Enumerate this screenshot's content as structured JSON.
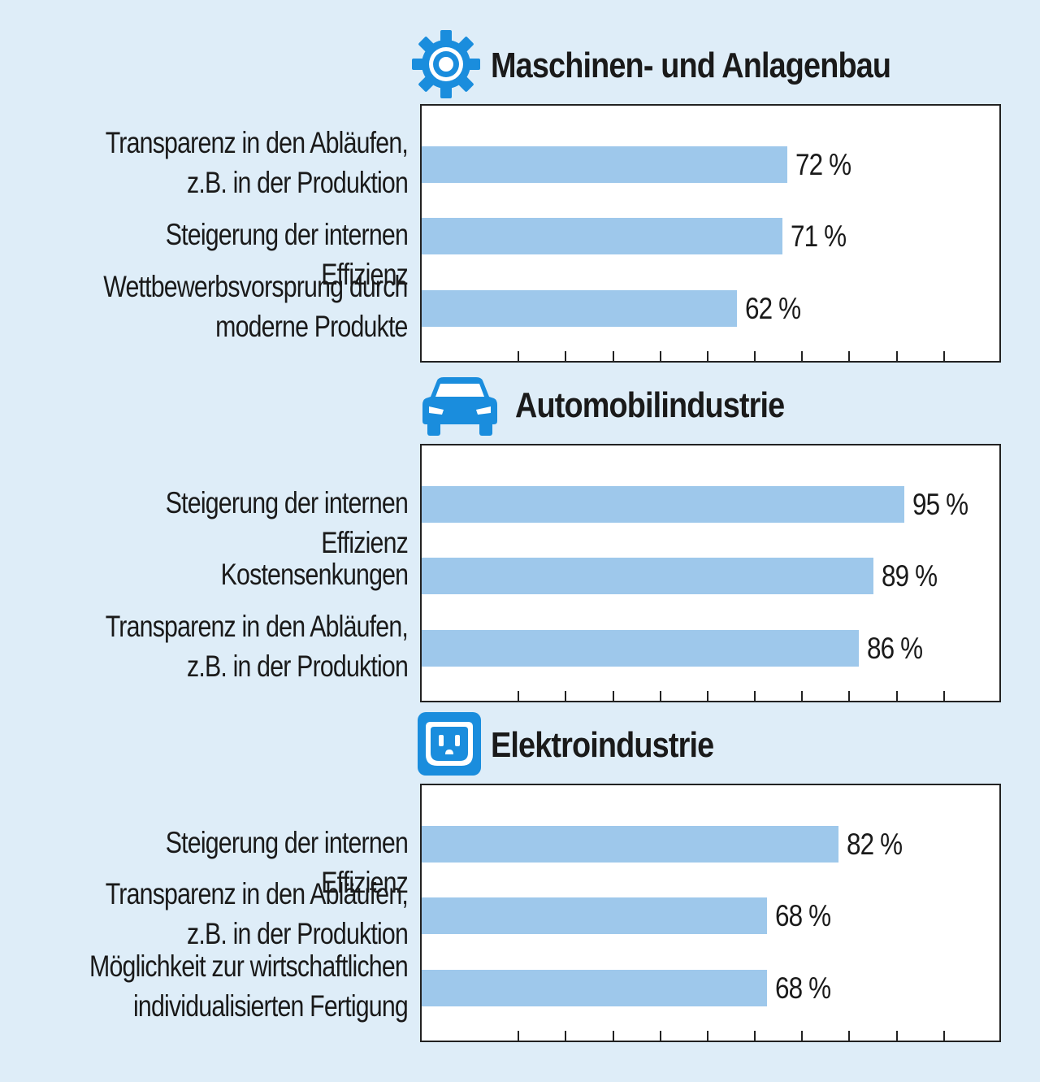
{
  "colors": {
    "background": "#deedf8",
    "bar": "#9ec8eb",
    "icon": "#1a8ddd",
    "text": "#1a1a1a"
  },
  "chart_data": [
    {
      "type": "bar",
      "orientation": "horizontal",
      "title": "Maschinen- und Anlagenbau",
      "icon": "gear-icon",
      "categories": [
        "Transparenz in den Abläufen,\nz.B. in der Produktion",
        "Steigerung der internen Effizienz",
        "Wettbewerbsvorsprung durch\nmoderne Produkte"
      ],
      "values": [
        72,
        71,
        62
      ],
      "value_labels": [
        "72 %",
        "71 %",
        "62 %"
      ],
      "xlim": [
        0,
        110
      ],
      "tick_step": 10,
      "grid": false
    },
    {
      "type": "bar",
      "orientation": "horizontal",
      "title": "Automobilindustrie",
      "icon": "car-icon",
      "categories": [
        "Steigerung der internen Effizienz",
        "Kostensenkungen",
        "Transparenz in den Abläufen,\nz.B. in der Produktion"
      ],
      "values": [
        95,
        89,
        86
      ],
      "value_labels": [
        "95 %",
        "89 %",
        "86 %"
      ],
      "xlim": [
        0,
        110
      ],
      "tick_step": 10,
      "grid": false
    },
    {
      "type": "bar",
      "orientation": "horizontal",
      "title": "Elektroindustrie",
      "icon": "power-outlet-icon",
      "categories": [
        "Steigerung der internen Effizienz",
        "Transparenz in den Abläufen,\nz.B. in der Produktion",
        "Möglichkeit zur wirtschaftlichen\nindividualisierten Fertigung"
      ],
      "values": [
        82,
        68,
        68
      ],
      "value_labels": [
        "82 %",
        "68 %",
        "68 %"
      ],
      "xlim": [
        0,
        110
      ],
      "tick_step": 10,
      "grid": false
    }
  ]
}
